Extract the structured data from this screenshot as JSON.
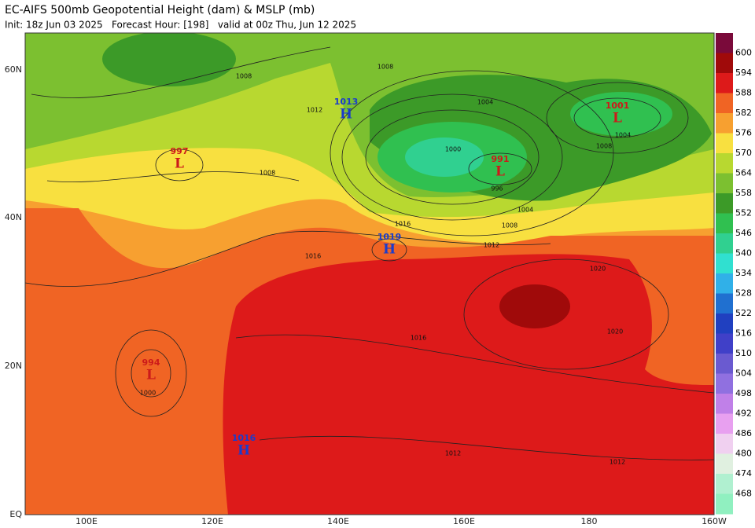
{
  "header": {
    "title": "EC-AIFS 500mb Geopotential Height (dam) & MSLP (mb)",
    "subtitle": "Init: 18z Jun 03 2025   Forecast Hour: [198]   valid at 00z Thu, Jun 12 2025"
  },
  "colorbar": {
    "labels": [
      600,
      594,
      588,
      582,
      576,
      570,
      564,
      558,
      552,
      546,
      540,
      534,
      528,
      522,
      516,
      510,
      504,
      498,
      492,
      486,
      480,
      474,
      468
    ],
    "colors": [
      "#7a0a3a",
      "#a00a0a",
      "#dd1a1a",
      "#f06424",
      "#f7a030",
      "#f8e040",
      "#b8d830",
      "#7cc030",
      "#3c9a28",
      "#30c050",
      "#30d090",
      "#30e0d0",
      "#30b0e8",
      "#2070d0",
      "#2040c0",
      "#4040c8",
      "#6a5ad0",
      "#9070e0",
      "#c080e8",
      "#e8a0f0",
      "#f0d0f0",
      "#e0f0e0",
      "#b0f0d0",
      "#90f0c0"
    ]
  },
  "axes": {
    "lat_labels": [
      "60N",
      "40N",
      "20N",
      "EQ"
    ],
    "lon_labels": [
      "100E",
      "120E",
      "140E",
      "160E",
      "180",
      "160W"
    ]
  },
  "centers": [
    {
      "letter": "H",
      "value": "1013"
    },
    {
      "letter": "H",
      "value": "1019"
    },
    {
      "letter": "H",
      "value": "1016"
    },
    {
      "letter": "L",
      "value": "997"
    },
    {
      "letter": "L",
      "value": "991"
    },
    {
      "letter": "L",
      "value": "1001"
    },
    {
      "letter": "L",
      "value": "994"
    }
  ],
  "isobar_labels": [
    "1008",
    "1008",
    "1004",
    "1012",
    "1008",
    "1016",
    "1016",
    "1020",
    "1020",
    "1016",
    "1012",
    "1012",
    "1012",
    "1004",
    "1008",
    "1000",
    "996",
    "1004",
    "1008",
    "1000"
  ]
}
